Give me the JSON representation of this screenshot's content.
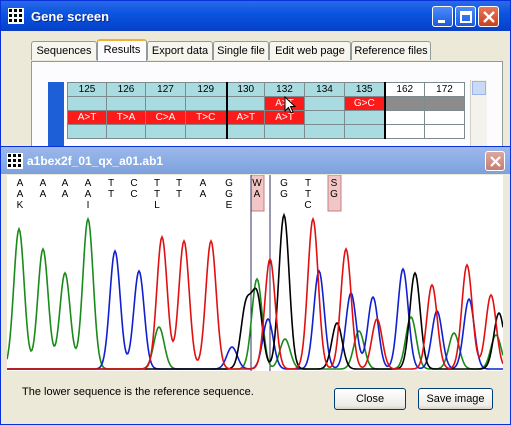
{
  "main_window": {
    "title": "Gene screen",
    "tabs": [
      {
        "label": "Sequences",
        "active": false
      },
      {
        "label": "Results",
        "active": true
      },
      {
        "label": "Export data",
        "active": false
      },
      {
        "label": "Single file",
        "active": false
      },
      {
        "label": "Edit web page",
        "active": false
      },
      {
        "label": "Reference files",
        "active": false
      }
    ],
    "grid": {
      "columns": [
        "125",
        "126",
        "127",
        "129",
        "130",
        "132",
        "134",
        "135",
        "162",
        "172"
      ],
      "row1": [
        "",
        "",
        "",
        "",
        "",
        "A>T",
        "",
        "G>C",
        "",
        ""
      ],
      "row2": [
        "A>T",
        "T>A",
        "C>A",
        "T>C",
        "A>T",
        "A>T",
        "",
        "",
        "",
        ""
      ],
      "colors": {
        "red": "#ff1a1a",
        "teal": "#a8dce0",
        "gray": "#8c8c8c",
        "white": "#ffffff"
      }
    }
  },
  "trace_window": {
    "title": "a1bex2f_01_qx_a01.ab1",
    "bases_upper": [
      "A",
      "A",
      "A",
      "A",
      "T",
      "C",
      "T",
      "T",
      "A",
      "G",
      "W",
      "G",
      "T",
      "S"
    ],
    "bases_lower": [
      "A",
      "A",
      "A",
      "A",
      "T",
      "C",
      "T",
      "T",
      "A",
      "G",
      "A",
      "G",
      "T",
      "G"
    ],
    "bases_third": [
      "K",
      "",
      "",
      "I",
      "",
      "",
      "L",
      "",
      "",
      "E",
      "",
      "",
      "C",
      ""
    ],
    "footer_text": "The lower sequence is the reference sequence.",
    "close_label": "Close",
    "save_label": "Save image",
    "trace_colors": {
      "A": "#1a8a1a",
      "C": "#1020d0",
      "G": "#000000",
      "T": "#e01010"
    }
  }
}
